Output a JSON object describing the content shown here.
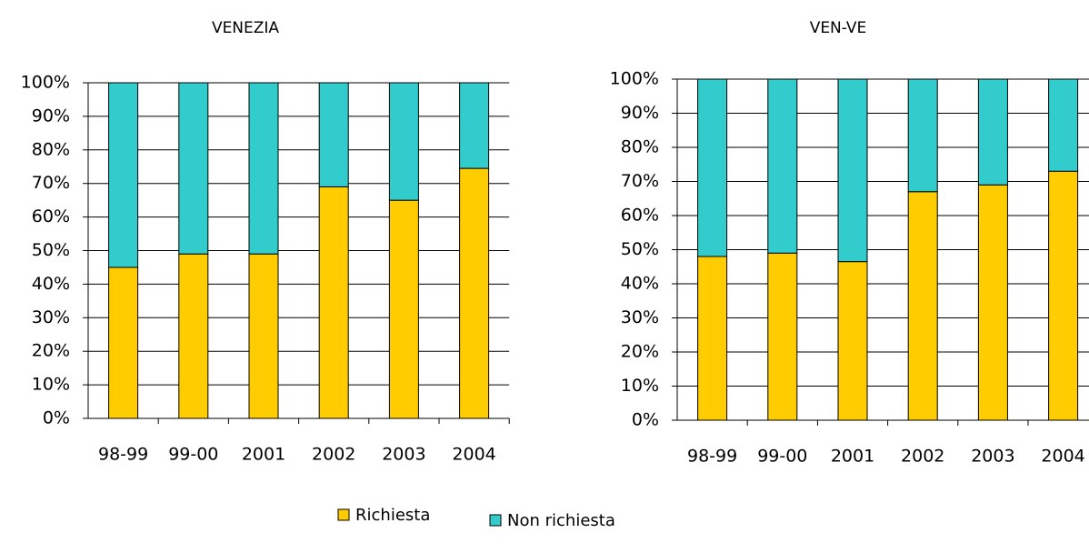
{
  "chart_data": [
    {
      "type": "stacked_bar",
      "title": "VENEZIA",
      "categories": [
        "98-99",
        "99-00",
        "2001",
        "2002",
        "2003",
        "2004"
      ],
      "series": [
        {
          "name": "Richiesta",
          "color": "#ffcc00",
          "values": [
            45,
            49,
            49,
            69,
            65,
            74.5
          ]
        },
        {
          "name": "Non richiesta",
          "color": "#33cccc",
          "values": [
            55,
            51,
            51,
            31,
            35,
            25.5
          ]
        }
      ],
      "ylim": [
        0,
        100
      ],
      "yticks": [
        {
          "value": 0,
          "label": "0%"
        },
        {
          "value": 10,
          "label": "10%"
        },
        {
          "value": 20,
          "label": "20%"
        },
        {
          "value": 30,
          "label": "30%"
        },
        {
          "value": 40,
          "label": "40%"
        },
        {
          "value": 50,
          "label": "50%"
        },
        {
          "value": 60,
          "label": "60%"
        },
        {
          "value": 70,
          "label": "70%"
        },
        {
          "value": 80,
          "label": "80%"
        },
        {
          "value": 90,
          "label": "90%"
        },
        {
          "value": 100,
          "label": "100%"
        }
      ],
      "grid": true
    },
    {
      "type": "stacked_bar",
      "title": "VEN-VE",
      "categories": [
        "98-99",
        "99-00",
        "2001",
        "2002",
        "2003",
        "2004"
      ],
      "series": [
        {
          "name": "Richiesta",
          "color": "#ffcc00",
          "values": [
            48,
            49,
            46.5,
            67,
            69,
            73
          ]
        },
        {
          "name": "Non richiesta",
          "color": "#33cccc",
          "values": [
            52,
            51,
            53.5,
            33,
            31,
            27
          ]
        }
      ],
      "ylim": [
        0,
        100
      ],
      "yticks": [
        {
          "value": 0,
          "label": "0%"
        },
        {
          "value": 10,
          "label": "10%"
        },
        {
          "value": 20,
          "label": "20%"
        },
        {
          "value": 30,
          "label": "30%"
        },
        {
          "value": 40,
          "label": "40%"
        },
        {
          "value": 50,
          "label": "50%"
        },
        {
          "value": 60,
          "label": "60%"
        },
        {
          "value": 70,
          "label": "70%"
        },
        {
          "value": 80,
          "label": "80%"
        },
        {
          "value": 90,
          "label": "90%"
        },
        {
          "value": 100,
          "label": "100%"
        }
      ],
      "grid": true
    }
  ]
}
